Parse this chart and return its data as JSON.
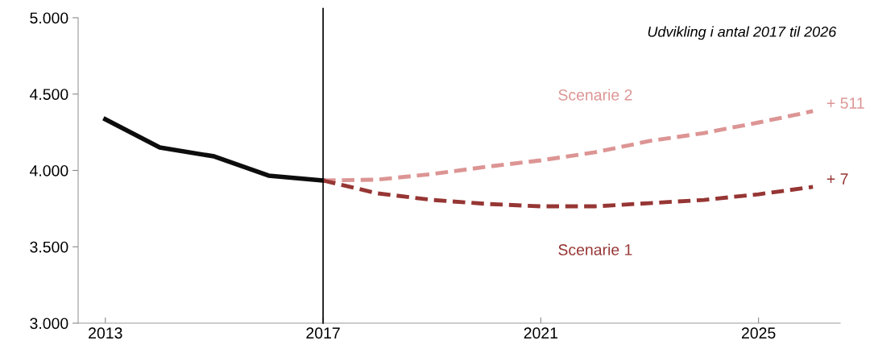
{
  "chart_data": {
    "type": "line",
    "x": [
      2013,
      2014,
      2015,
      2016,
      2017,
      2018,
      2019,
      2020,
      2021,
      2022,
      2023,
      2024,
      2025,
      2026
    ],
    "series": [
      {
        "color": "#0d0d0d",
        "line_style": "solid",
        "values": [
          4335,
          4150,
          4092,
          3966,
          3934,
          null,
          null,
          null,
          null,
          null,
          null,
          null,
          null,
          null
        ]
      },
      {
        "name": "Scenarie 2",
        "color": "#dc9594",
        "line_style": "dashed",
        "values": [
          null,
          null,
          null,
          null,
          3934,
          3940,
          3976,
          4024,
          4066,
          4119,
          4193,
          4245,
          4314,
          4388
        ]
      },
      {
        "name": "Scenarie 1",
        "color": "#963634",
        "line_style": "dashed",
        "values": [
          null,
          null,
          null,
          null,
          3934,
          3850,
          3807,
          3781,
          3765,
          3765,
          3786,
          3807,
          3844,
          3892
        ]
      }
    ],
    "xlim": [
      2012.5,
      2026.5
    ],
    "xticks": [
      2013,
      2017,
      2021,
      2025
    ],
    "ylim": [
      3000,
      5000
    ],
    "yticks": [
      {
        "value": 3000,
        "label": "3.000"
      },
      {
        "value": 3500,
        "label": "3.500"
      },
      {
        "value": 4000,
        "label": "4.000"
      },
      {
        "value": 4500,
        "label": "4.500"
      },
      {
        "value": 5000,
        "label": "5.000"
      }
    ],
    "ref_lines": [
      {
        "axis": "x",
        "value": 2017,
        "color": "#000000"
      }
    ],
    "annotations": [
      "Udvikling i antal 2017 til 2026",
      {
        "text": "+ 511",
        "x": 2026,
        "y": 4388
      },
      {
        "text": "+ 7",
        "x": 2026,
        "y": 3892
      }
    ],
    "grid": false,
    "legend": false,
    "marker": "none"
  }
}
